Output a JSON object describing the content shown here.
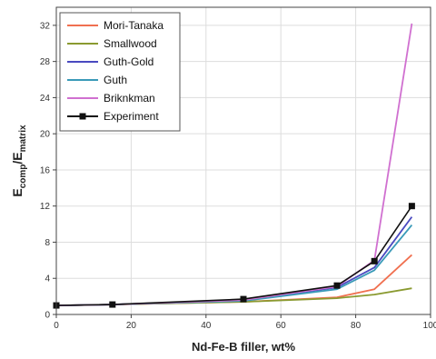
{
  "chart_data": {
    "type": "line",
    "xlabel": "Nd-Fe-B filler, wt%",
    "ylabel_main": "E",
    "ylabel_sub1": "comp",
    "ylabel_sep": "/E",
    "ylabel_sub2": "matrix",
    "xlim": [
      0,
      100
    ],
    "ylim": [
      0,
      34
    ],
    "xticks": [
      0,
      20,
      40,
      60,
      80,
      100
    ],
    "yticks": [
      0,
      4,
      8,
      12,
      16,
      20,
      24,
      28,
      32
    ],
    "grid": true,
    "legend_position": "top-left",
    "series": [
      {
        "name": "Mori-Tanaka",
        "color": "#f07050",
        "marker": "none",
        "x": [
          0,
          15,
          50,
          75,
          85,
          95
        ],
        "y": [
          1.0,
          1.1,
          1.4,
          1.9,
          2.8,
          6.6
        ]
      },
      {
        "name": "Smallwood",
        "color": "#8a9a30",
        "marker": "none",
        "x": [
          0,
          15,
          50,
          75,
          85,
          95
        ],
        "y": [
          1.0,
          1.1,
          1.4,
          1.8,
          2.2,
          2.9
        ]
      },
      {
        "name": "Guth-Gold",
        "color": "#4a4ac0",
        "marker": "none",
        "x": [
          0,
          15,
          50,
          75,
          85,
          95
        ],
        "y": [
          1.0,
          1.1,
          1.6,
          3.0,
          5.2,
          10.8
        ]
      },
      {
        "name": "Guth",
        "color": "#3a9ab8",
        "marker": "none",
        "x": [
          0,
          15,
          50,
          75,
          85,
          95
        ],
        "y": [
          1.0,
          1.1,
          1.5,
          2.8,
          4.9,
          9.9
        ]
      },
      {
        "name": "Briknkman",
        "color": "#d070d0",
        "marker": "none",
        "x": [
          0,
          15,
          50,
          75,
          85,
          95
        ],
        "y": [
          1.0,
          1.1,
          1.6,
          3.1,
          6.0,
          32.2
        ]
      },
      {
        "name": "Experiment",
        "color": "#111111",
        "marker": "square",
        "x": [
          0,
          15,
          50,
          75,
          85,
          95
        ],
        "y": [
          1.0,
          1.1,
          1.7,
          3.2,
          5.9,
          12.0
        ]
      }
    ]
  }
}
